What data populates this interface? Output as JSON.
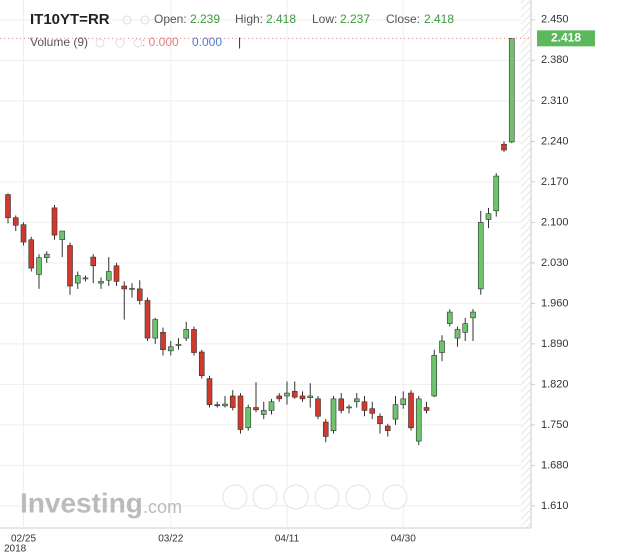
{
  "chart_data": {
    "type": "candlestick",
    "header": {
      "symbol": "IT10YT=RR",
      "open_label": "Open:",
      "open": 2.239,
      "high_label": "High:",
      "high": 2.418,
      "low_label": "Low:",
      "low": 2.237,
      "close_label": "Close:",
      "close": 2.418,
      "volume_label": "Volume (9)",
      "volume_value_1": ": 0.000",
      "volume_value_2": "0.000",
      "volume_sep": "|"
    },
    "logo": {
      "main": "Investing",
      "suffix": ".com"
    },
    "x_year": "2018",
    "categories": [
      null,
      null,
      "02/25",
      null,
      null,
      null,
      null,
      null,
      null,
      null,
      null,
      null,
      null,
      null,
      null,
      null,
      null,
      null,
      null,
      null,
      null,
      "03/22",
      null,
      null,
      null,
      null,
      null,
      null,
      null,
      null,
      null,
      null,
      null,
      null,
      null,
      null,
      "04/11",
      null,
      null,
      null,
      null,
      null,
      null,
      null,
      null,
      null,
      null,
      null,
      null,
      null,
      null,
      "04/30",
      null,
      null,
      null,
      null,
      null,
      null,
      null,
      null,
      null,
      null,
      null,
      null,
      null,
      null
    ],
    "ohlc": [
      [
        2.148,
        2.15,
        2.098,
        2.108
      ],
      [
        2.108,
        2.112,
        2.085,
        2.095
      ],
      [
        2.096,
        2.1,
        2.06,
        2.066
      ],
      [
        2.07,
        2.075,
        2.015,
        2.021
      ],
      [
        2.01,
        2.045,
        1.985,
        2.039
      ],
      [
        2.039,
        2.05,
        2.03,
        2.045
      ],
      [
        2.125,
        2.13,
        2.07,
        2.078
      ],
      [
        2.07,
        2.085,
        2.04,
        2.085
      ],
      [
        2.06,
        2.065,
        1.975,
        1.99
      ],
      [
        1.995,
        2.015,
        1.985,
        2.008
      ],
      [
        2.003,
        2.008,
        1.998,
        2.004
      ],
      [
        2.04,
        2.045,
        1.995,
        2.025
      ],
      [
        1.995,
        2.005,
        1.985,
        1.998
      ],
      [
        2.0,
        2.04,
        1.99,
        2.015
      ],
      [
        2.025,
        2.03,
        1.99,
        1.998
      ],
      [
        1.99,
        1.998,
        1.932,
        1.985
      ],
      [
        1.985,
        1.995,
        1.97,
        1.986
      ],
      [
        1.985,
        2.0,
        1.958,
        1.965
      ],
      [
        1.965,
        1.97,
        1.895,
        1.9
      ],
      [
        1.9,
        1.935,
        1.89,
        1.932
      ],
      [
        1.91,
        1.918,
        1.87,
        1.88
      ],
      [
        1.878,
        1.895,
        1.87,
        1.885
      ],
      [
        1.888,
        1.9,
        1.88,
        1.889
      ],
      [
        1.9,
        1.928,
        1.895,
        1.915
      ],
      [
        1.915,
        1.92,
        1.87,
        1.875
      ],
      [
        1.876,
        1.88,
        1.83,
        1.835
      ],
      [
        1.83,
        1.835,
        1.78,
        1.785
      ],
      [
        1.785,
        1.79,
        1.78,
        1.783
      ],
      [
        1.783,
        1.8,
        1.78,
        1.786
      ],
      [
        1.8,
        1.81,
        1.775,
        1.78
      ],
      [
        1.8,
        1.805,
        1.735,
        1.742
      ],
      [
        1.745,
        1.785,
        1.74,
        1.78
      ],
      [
        1.78,
        1.824,
        1.772,
        1.776
      ],
      [
        1.768,
        1.79,
        1.76,
        1.775
      ],
      [
        1.775,
        1.795,
        1.768,
        1.79
      ],
      [
        1.8,
        1.805,
        1.79,
        1.795
      ],
      [
        1.8,
        1.825,
        1.785,
        1.805
      ],
      [
        1.808,
        1.825,
        1.795,
        1.798
      ],
      [
        1.8,
        1.808,
        1.79,
        1.795
      ],
      [
        1.797,
        1.822,
        1.78,
        1.8
      ],
      [
        1.795,
        1.8,
        1.76,
        1.765
      ],
      [
        1.755,
        1.76,
        1.72,
        1.73
      ],
      [
        1.74,
        1.8,
        1.735,
        1.795
      ],
      [
        1.795,
        1.805,
        1.77,
        1.775
      ],
      [
        1.78,
        1.785,
        1.77,
        1.781
      ],
      [
        1.79,
        1.805,
        1.78,
        1.795
      ],
      [
        1.79,
        1.8,
        1.765,
        1.775
      ],
      [
        1.778,
        1.79,
        1.76,
        1.77
      ],
      [
        1.765,
        1.77,
        1.735,
        1.752
      ],
      [
        1.748,
        1.752,
        1.73,
        1.74
      ],
      [
        1.76,
        1.8,
        1.75,
        1.785
      ],
      [
        1.785,
        1.808,
        1.778,
        1.795
      ],
      [
        1.805,
        1.81,
        1.74,
        1.745
      ],
      [
        1.722,
        1.8,
        1.715,
        1.795
      ],
      [
        1.78,
        1.79,
        1.77,
        1.775
      ],
      [
        1.8,
        1.88,
        1.798,
        1.87
      ],
      [
        1.875,
        1.905,
        1.86,
        1.895
      ],
      [
        1.925,
        1.95,
        1.92,
        1.945
      ],
      [
        1.9,
        1.92,
        1.885,
        1.915
      ],
      [
        1.91,
        1.935,
        1.895,
        1.925
      ],
      [
        1.935,
        1.95,
        1.895,
        1.945
      ],
      [
        1.985,
        2.12,
        1.975,
        2.1
      ],
      [
        2.105,
        2.125,
        2.09,
        2.115
      ],
      [
        2.12,
        2.185,
        2.11,
        2.18
      ],
      [
        2.235,
        2.24,
        2.222,
        2.225
      ],
      [
        2.239,
        2.418,
        2.237,
        2.418
      ]
    ],
    "up_color": "#6cc46c",
    "down_color": "#d0392b",
    "ylim": [
      1.577,
      2.467
    ],
    "yticks": [
      {
        "value": 2.45,
        "label": "2.450"
      },
      {
        "value": 2.38,
        "label": "2.380"
      },
      {
        "value": 2.31,
        "label": "2.310"
      },
      {
        "value": 2.24,
        "label": "2.240"
      },
      {
        "value": 2.17,
        "label": "2.170"
      },
      {
        "value": 2.1,
        "label": "2.100"
      },
      {
        "value": 2.03,
        "label": "2.030"
      },
      {
        "value": 1.96,
        "label": "1.960"
      },
      {
        "value": 1.89,
        "label": "1.890"
      },
      {
        "value": 1.82,
        "label": "1.820"
      },
      {
        "value": 1.75,
        "label": "1.750"
      },
      {
        "value": 1.68,
        "label": "1.680"
      },
      {
        "value": 1.61,
        "label": "1.610"
      }
    ],
    "grid": true
  }
}
